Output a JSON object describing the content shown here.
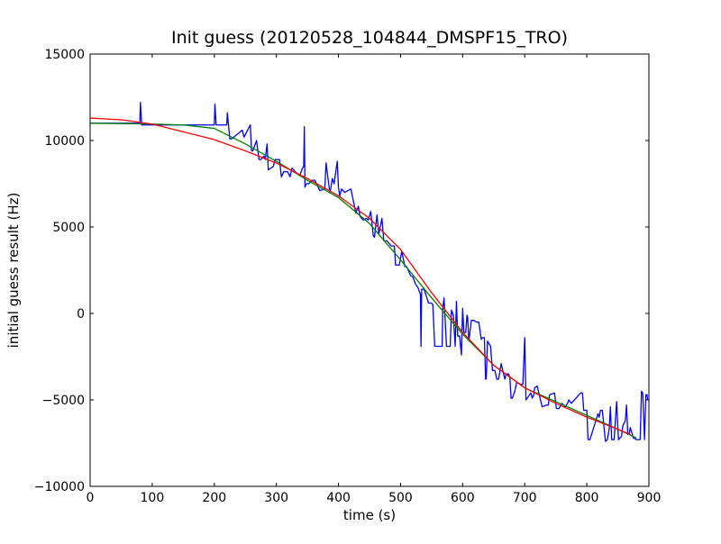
{
  "chart_data": {
    "type": "line",
    "title": "Init guess (20120528_104844_DMSPF15_TRO)",
    "xlabel": "time (s)",
    "ylabel": "initial guess result (Hz)",
    "xlim": [
      0,
      900
    ],
    "ylim": [
      -10000,
      15000
    ],
    "xticks": [
      0,
      100,
      200,
      300,
      400,
      500,
      600,
      700,
      800,
      900
    ],
    "yticks": [
      -10000,
      -5000,
      0,
      5000,
      10000,
      15000
    ],
    "xtick_labels": [
      "0",
      "100",
      "200",
      "300",
      "400",
      "500",
      "600",
      "700",
      "800",
      "900"
    ],
    "ytick_labels": [
      "−10000",
      "−5000",
      "0",
      "5000",
      "10000",
      "15000"
    ],
    "grid": false,
    "legend": "none",
    "series": [
      {
        "color": "#0000ff",
        "x": [
          0,
          80,
          81,
          83,
          200,
          201,
          203,
          220,
          221,
          225,
          228,
          245,
          248,
          258,
          260,
          262,
          268,
          272,
          275,
          280,
          282,
          285,
          287,
          295,
          298,
          305,
          308,
          312,
          318,
          322,
          325,
          333,
          338,
          342,
          344,
          345,
          346,
          348,
          349,
          352,
          358,
          362,
          370,
          378,
          380,
          386,
          387,
          388,
          390,
          393,
          398,
          400,
          402,
          405,
          410,
          420,
          428,
          432,
          435,
          440,
          445,
          448,
          452,
          456,
          458,
          462,
          465,
          470,
          473,
          478,
          485,
          490,
          492,
          498,
          502,
          507,
          510,
          516,
          520,
          524,
          528,
          532,
          533,
          534,
          538,
          545,
          550,
          552,
          555,
          560,
          563,
          567,
          568,
          570,
          574,
          580,
          582,
          585,
          588,
          590,
          592,
          595,
          598,
          600,
          602,
          605,
          607,
          608,
          610,
          614,
          618,
          622,
          626,
          630,
          632,
          635,
          637,
          638,
          640,
          645,
          648,
          652,
          655,
          658,
          662,
          668,
          670,
          674,
          676,
          678,
          680,
          684,
          687,
          688,
          693,
          697,
          700,
          702,
          706,
          710,
          712,
          713,
          714,
          716,
          720,
          728,
          735,
          738,
          740,
          748,
          751,
          755,
          760,
          765,
          769,
          771,
          775,
          790,
          793,
          795,
          800,
          802,
          803,
          805,
          818,
          820,
          822,
          825,
          830,
          833,
          836,
          838,
          840,
          844,
          848,
          851,
          856,
          858,
          862,
          864,
          866,
          868,
          870,
          875,
          880,
          884,
          886,
          888,
          890,
          893,
          895,
          897,
          898
        ],
        "y": [
          11000,
          11000,
          12200,
          10900,
          10900,
          12100,
          10900,
          10900,
          11600,
          10100,
          10100,
          10600,
          10200,
          10900,
          9400,
          9400,
          10000,
          8900,
          8900,
          9100,
          8900,
          9800,
          8300,
          8500,
          8900,
          8900,
          7900,
          8200,
          8200,
          7900,
          8400,
          8100,
          8000,
          8400,
          8500,
          10800,
          7300,
          7500,
          7500,
          7500,
          7700,
          7700,
          7100,
          7200,
          8700,
          7000,
          7100,
          7300,
          7800,
          7500,
          8800,
          7300,
          6800,
          7200,
          7000,
          7200,
          5800,
          6200,
          5600,
          5400,
          5500,
          5400,
          5900,
          4500,
          4400,
          5700,
          4600,
          5500,
          4200,
          4200,
          3900,
          3900,
          2800,
          2800,
          3600,
          2700,
          2700,
          2200,
          2100,
          1700,
          1500,
          1100,
          -1900,
          1400,
          1400,
          600,
          600,
          500,
          -1900,
          -1900,
          -1900,
          -1900,
          300,
          900,
          -1900,
          -1900,
          200,
          -100,
          -1900,
          700,
          -1300,
          -1300,
          -2400,
          300,
          -1100,
          -1100,
          -100,
          -200,
          -1600,
          -400,
          -400,
          -500,
          -500,
          -1500,
          -1400,
          -1400,
          -3800,
          -3800,
          -1600,
          -1900,
          -3300,
          -3300,
          -3800,
          -3800,
          -2900,
          -3800,
          -3500,
          -3500,
          -3700,
          -4900,
          -4900,
          -4500,
          -4000,
          -4000,
          -4100,
          -4100,
          -1400,
          -5000,
          -4800,
          -4600,
          -4900,
          -4800,
          -4800,
          -4300,
          -4200,
          -5400,
          -5300,
          -5300,
          -4700,
          -4600,
          -5500,
          -5500,
          -5200,
          -5400,
          -5200,
          -5000,
          -5200,
          -4600,
          -4600,
          -5600,
          -5600,
          -7300,
          -7300,
          -7300,
          -5800,
          -6000,
          -5600,
          -5600,
          -7400,
          -7300,
          -6700,
          -5400,
          -7300,
          -7300,
          -5100,
          -7300,
          -7100,
          -6500,
          -6200,
          -5300,
          -7000,
          -7000,
          -6600,
          -7200,
          -7300,
          -7300,
          -7300,
          -4500,
          -4600,
          -7300,
          -4700,
          -4700,
          -5000
        ]
      },
      {
        "color": "#008000",
        "x": [
          0,
          50,
          100,
          150,
          200,
          250,
          300,
          350,
          400,
          450,
          500,
          550,
          600,
          650,
          700,
          750,
          800,
          850,
          880
        ],
        "y": [
          11000,
          10980,
          10950,
          10900,
          10700,
          9800,
          8800,
          7700,
          6700,
          5200,
          3100,
          900,
          -1200,
          -3000,
          -4300,
          -5100,
          -5900,
          -6700,
          -7200
        ]
      },
      {
        "color": "#ff0000",
        "x": [
          0,
          50,
          100,
          150,
          200,
          250,
          300,
          350,
          400,
          450,
          500,
          550,
          600,
          650,
          700,
          750,
          800,
          850,
          870
        ],
        "y": [
          11300,
          11200,
          10950,
          10500,
          10050,
          9400,
          8700,
          7800,
          6800,
          5500,
          3700,
          1200,
          -1100,
          -3000,
          -4300,
          -5200,
          -6000,
          -6700,
          -7000
        ]
      }
    ]
  }
}
